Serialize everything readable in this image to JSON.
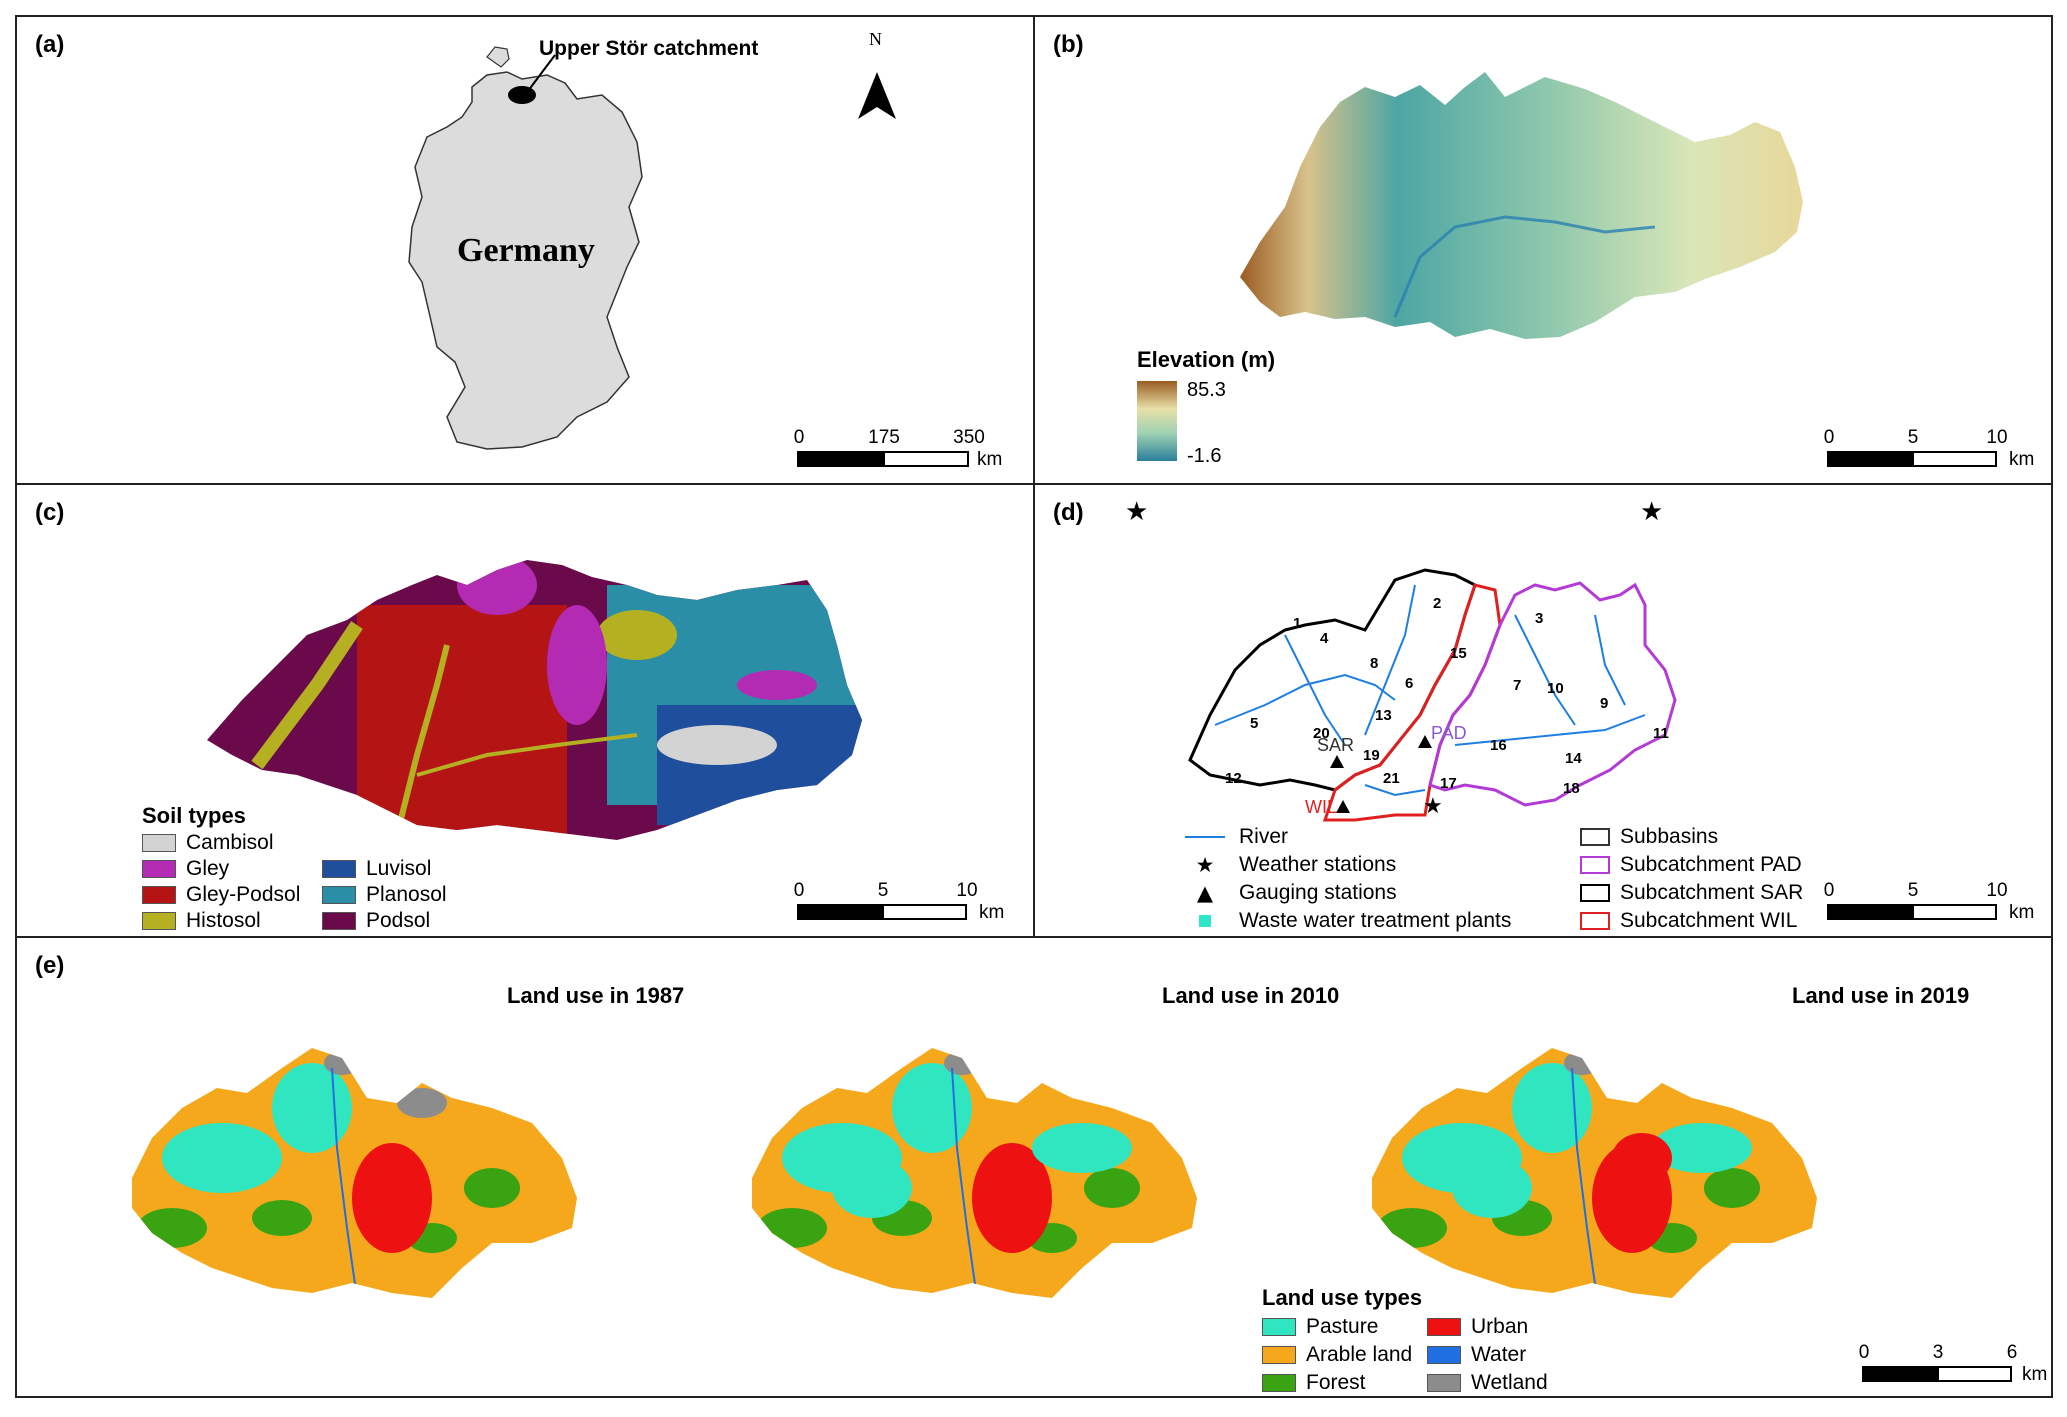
{
  "panels": {
    "a": {
      "label": "(a)",
      "callout": "Upper Stör catchment",
      "country": "Germany",
      "north": "N",
      "scale": {
        "ticks": [
          "0",
          "175",
          "350"
        ],
        "unit": "km"
      }
    },
    "b": {
      "label": "(b)",
      "legend_title": "Elevation (m)",
      "elev_max": "85.3",
      "elev_min": "-1.6",
      "scale": {
        "ticks": [
          "0",
          "5",
          "10"
        ],
        "unit": "km"
      }
    },
    "c": {
      "label": "(c)",
      "legend_title": "Soil types",
      "soils": [
        {
          "name": "Cambisol",
          "color": "#d3d3d3"
        },
        {
          "name": "Gley",
          "color": "#b32bb3"
        },
        {
          "name": "Gley-Podsol",
          "color": "#b51414"
        },
        {
          "name": "Histosol",
          "color": "#b5b022"
        },
        {
          "name": "Luvisol",
          "color": "#1f4e9c"
        },
        {
          "name": "Planosol",
          "color": "#2a8fa6"
        },
        {
          "name": "Podsol",
          "color": "#6b0a4a"
        }
      ],
      "scale": {
        "ticks": [
          "0",
          "5",
          "10"
        ],
        "unit": "km"
      }
    },
    "d": {
      "label": "(d)",
      "subbasin_numbers": [
        "1",
        "2",
        "3",
        "4",
        "5",
        "6",
        "7",
        "8",
        "9",
        "10",
        "11",
        "12",
        "13",
        "14",
        "15",
        "16",
        "17",
        "18",
        "19",
        "20",
        "21"
      ],
      "stations": {
        "sar": "SAR",
        "pad": "PAD",
        "wil": "WIL"
      },
      "legend": {
        "river": "River",
        "weather": "Weather stations",
        "gauging": "Gauging stations",
        "wwtp": "Waste water treatment plants",
        "subbasins": "Subbasins",
        "sub_pad": "Subcatchment PAD",
        "sub_sar": "Subcatchment SAR",
        "sub_wil": "Subcatchment WIL"
      },
      "colors": {
        "river": "#1e7fe0",
        "pad": "#b43ad6",
        "wil": "#e02020",
        "sar": "#000000",
        "wwtp": "#2ee6c8"
      },
      "scale": {
        "ticks": [
          "0",
          "5",
          "10"
        ],
        "unit": "km"
      }
    },
    "e": {
      "label": "(e)",
      "titles": [
        "Land use in 1987",
        "Land use in 2010",
        "Land use in 2019"
      ],
      "legend_title": "Land use types",
      "landuse": [
        {
          "name": "Pasture",
          "color": "#2fe6c0"
        },
        {
          "name": "Arable land",
          "color": "#f5a81c"
        },
        {
          "name": "Forest",
          "color": "#3aa312"
        },
        {
          "name": "Urban",
          "color": "#ee1111"
        },
        {
          "name": "Water",
          "color": "#1f6fe0"
        },
        {
          "name": "Wetland",
          "color": "#8c8c8c"
        }
      ],
      "scale": {
        "ticks": [
          "0",
          "3",
          "6"
        ],
        "unit": "km"
      }
    }
  }
}
